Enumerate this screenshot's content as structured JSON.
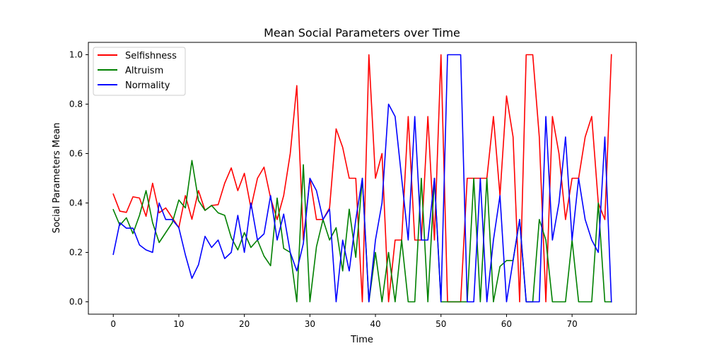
{
  "chart_data": {
    "type": "line",
    "title": "Mean Social Parameters over Time",
    "xlabel": "Time",
    "ylabel": "Social Parameters Mean",
    "xlim": [
      -3.8,
      79.8
    ],
    "ylim": [
      -0.05,
      1.05
    ],
    "xticks": [
      0,
      10,
      20,
      30,
      40,
      50,
      60,
      70
    ],
    "xtick_labels": [
      "0",
      "10",
      "20",
      "30",
      "40",
      "50",
      "60",
      "70"
    ],
    "yticks": [
      0.0,
      0.2,
      0.4,
      0.6,
      0.8,
      1.0
    ],
    "ytick_labels": [
      "0.0",
      "0.2",
      "0.4",
      "0.6",
      "0.8",
      "1.0"
    ],
    "grid": false,
    "legend_position": "top-left",
    "series": [
      {
        "name": "Selfishness",
        "color": "#ff0000",
        "values": [
          0.436,
          0.367,
          0.362,
          0.425,
          0.42,
          0.346,
          0.48,
          0.36,
          0.38,
          0.34,
          0.3,
          0.43,
          0.334,
          0.45,
          0.37,
          0.39,
          0.393,
          0.48,
          0.542,
          0.45,
          0.52,
          0.38,
          0.5,
          0.545,
          0.42,
          0.333,
          0.43,
          0.6,
          0.875,
          0.25,
          0.5,
          0.333,
          0.333,
          0.38,
          0.7,
          0.625,
          0.5,
          0.5,
          0.0,
          1.0,
          0.5,
          0.6,
          0.0,
          0.25,
          0.25,
          0.75,
          0.25,
          0.25,
          0.75,
          0.25,
          1.0,
          0.0,
          0.0,
          0.0,
          0.5,
          0.5,
          0.5,
          0.5,
          0.75,
          0.43,
          0.833,
          0.667,
          0.0,
          1.0,
          1.0,
          0.667,
          0.0,
          0.75,
          0.6,
          0.333,
          0.5,
          0.5,
          0.667,
          0.75,
          0.4,
          0.333,
          1.0
        ]
      },
      {
        "name": "Altruism",
        "color": "#008000",
        "values": [
          0.373,
          0.31,
          0.34,
          0.276,
          0.35,
          0.45,
          0.32,
          0.24,
          0.28,
          0.32,
          0.412,
          0.38,
          0.572,
          0.41,
          0.37,
          0.39,
          0.36,
          0.35,
          0.26,
          0.21,
          0.28,
          0.22,
          0.25,
          0.185,
          0.146,
          0.42,
          0.216,
          0.2,
          0.0,
          0.555,
          0.0,
          0.223,
          0.333,
          0.25,
          0.3,
          0.125,
          0.375,
          0.18,
          0.5,
          0.0,
          0.2,
          0.0,
          0.2,
          0.0,
          0.25,
          0.0,
          0.0,
          0.5,
          0.0,
          0.5,
          0.0,
          0.0,
          0.0,
          0.0,
          0.0,
          0.5,
          0.0,
          0.5,
          0.0,
          0.143,
          0.167,
          0.167,
          0.333,
          0.0,
          0.0,
          0.333,
          0.25,
          0.0,
          0.0,
          0.0,
          0.25,
          0.0,
          0.0,
          0.0,
          0.4,
          0.0,
          0.0
        ]
      },
      {
        "name": "Normality",
        "color": "#0000ff",
        "values": [
          0.192,
          0.32,
          0.298,
          0.298,
          0.23,
          0.21,
          0.2,
          0.4,
          0.333,
          0.333,
          0.3,
          0.19,
          0.095,
          0.15,
          0.265,
          0.22,
          0.25,
          0.175,
          0.2,
          0.35,
          0.2,
          0.4,
          0.25,
          0.275,
          0.43,
          0.25,
          0.355,
          0.2,
          0.125,
          0.236,
          0.5,
          0.45,
          0.333,
          0.375,
          0.0,
          0.25,
          0.125,
          0.333,
          0.5,
          0.0,
          0.25,
          0.4,
          0.8,
          0.75,
          0.5,
          0.25,
          0.75,
          0.25,
          0.25,
          0.5,
          0.0,
          1.0,
          1.0,
          1.0,
          0.0,
          0.0,
          0.5,
          0.0,
          0.25,
          0.43,
          0.0,
          0.167,
          0.333,
          0.0,
          0.0,
          0.0,
          0.75,
          0.25,
          0.4,
          0.667,
          0.25,
          0.5,
          0.333,
          0.25,
          0.2,
          0.667,
          0.0
        ]
      }
    ]
  }
}
